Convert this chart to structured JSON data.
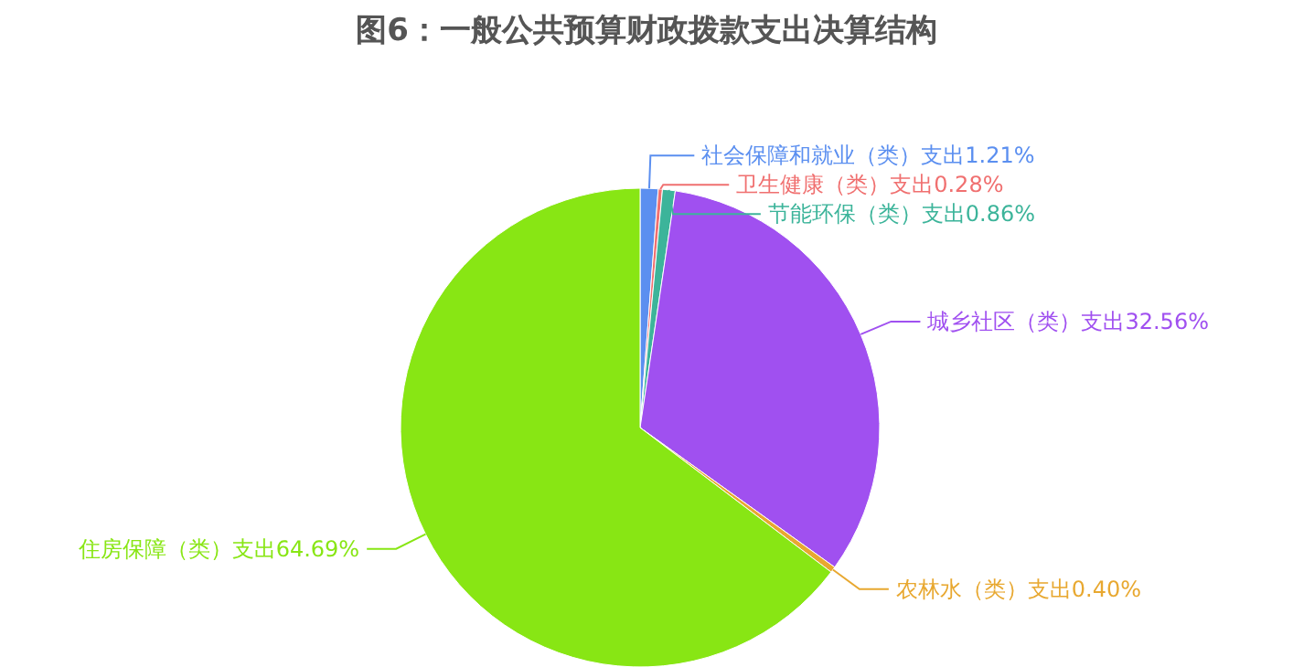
{
  "chart_data": {
    "type": "pie",
    "title": "图6：一般公共预算财政拨款支出决算结构",
    "categories": [
      "社会保障和就业（类）支出",
      "卫生健康（类）支出",
      "节能环保（类）支出",
      "城乡社区（类）支出",
      "农林水（类）支出",
      "住房保障（类）支出"
    ],
    "values": [
      1.21,
      0.28,
      0.86,
      32.56,
      0.4,
      64.69
    ],
    "value_labels": [
      "1.21%",
      "0.28%",
      "0.86%",
      "32.56%",
      "0.40%",
      "64.69%"
    ],
    "colors": [
      "#5b8ff0",
      "#f07070",
      "#3cb49a",
      "#a050f0",
      "#e8a830",
      "#88e614"
    ]
  }
}
